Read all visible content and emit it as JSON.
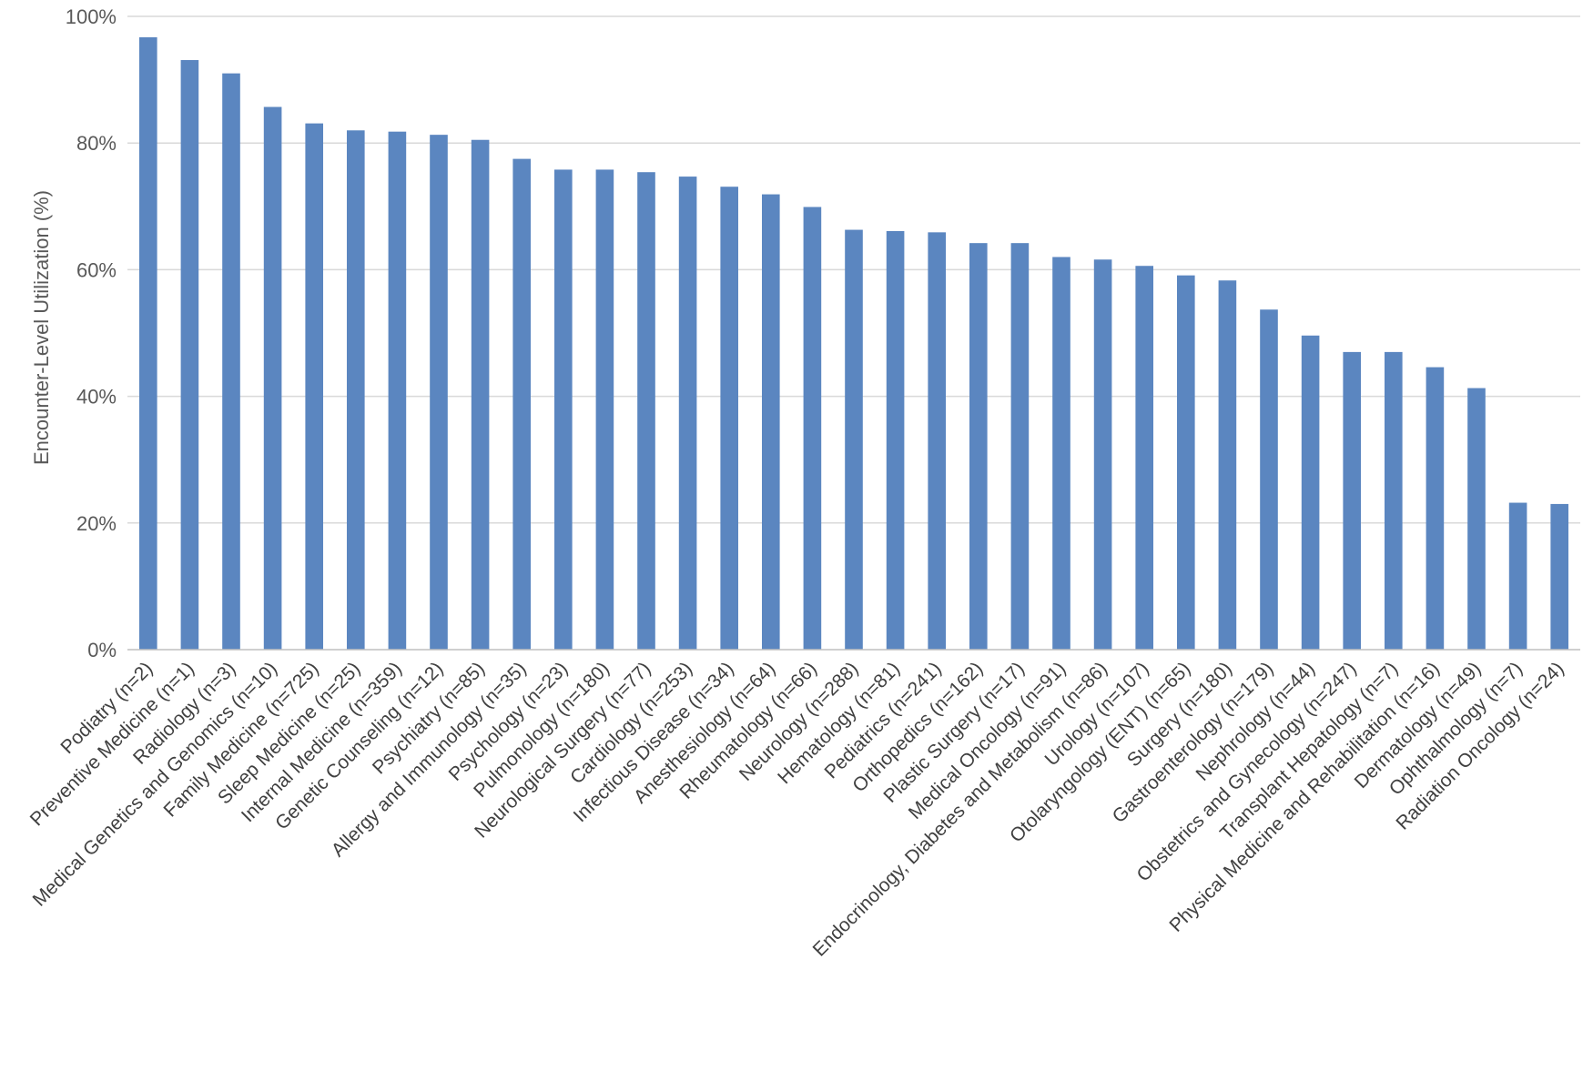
{
  "chart_data": {
    "type": "bar",
    "title": "",
    "xlabel": "",
    "ylabel": "Encounter-Level Utilization (%)",
    "ylim": [
      0,
      100
    ],
    "yticks": [
      0,
      20,
      40,
      60,
      80,
      100
    ],
    "ytick_labels": [
      "0%",
      "20%",
      "40%",
      "60%",
      "80%",
      "100%"
    ],
    "grid": true,
    "legend": "none",
    "bar_color": "#5b86c0",
    "categories": [
      "Podiatry (n=2)",
      "Preventive Medicine (n=1)",
      "Radiology (n=3)",
      "Medical Genetics and Genomics (n=10)",
      "Family Medicine (n=725)",
      "Sleep Medicine (n=25)",
      "Internal Medicine (n=359)",
      "Genetic Counseling (n=12)",
      "Psychiatry (n=85)",
      "Allergy and Immunology (n=35)",
      "Psychology (n=23)",
      "Pulmonology (n=180)",
      "Neurological Surgery (n=77)",
      "Cardiology (n=253)",
      "Infectious Disease (n=34)",
      "Anesthesiology (n=64)",
      "Rheumatology (n=66)",
      "Neurology (n=288)",
      "Hematology (n=81)",
      "Pediatrics (n=241)",
      "Orthopedics (n=162)",
      "Plastic Surgery (n=17)",
      "Medical Oncology (n=91)",
      "Endocrinology, Diabetes and Metabolism (n=86)",
      "Urology (n=107)",
      "Otolaryngology (ENT) (n=65)",
      "Surgery (n=180)",
      "Gastroenterology (n=179)",
      "Nephrology (n=44)",
      "Obstetrics and Gynecology (n=247)",
      "Transplant Hepatology (n=7)",
      "Physical Medicine and Rehabilitation (n=16)",
      "Dermatology (n=49)",
      "Ophthalmology (n=7)",
      "Radiation Oncology (n=24)"
    ],
    "values": [
      96.7,
      93.1,
      91.0,
      85.7,
      83.1,
      82.0,
      81.8,
      81.3,
      80.5,
      77.5,
      75.8,
      75.8,
      75.4,
      74.7,
      73.1,
      71.9,
      69.9,
      66.3,
      66.1,
      65.9,
      64.2,
      64.2,
      62.0,
      61.6,
      60.6,
      59.1,
      58.3,
      53.7,
      49.6,
      47.0,
      47.0,
      44.6,
      41.3,
      23.2,
      23.0
    ]
  }
}
